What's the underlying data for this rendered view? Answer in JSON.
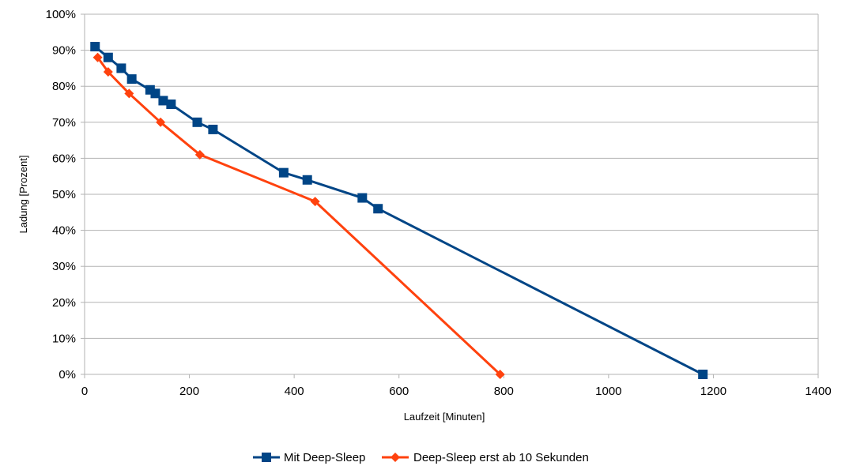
{
  "chart_data": {
    "type": "line",
    "xlabel": "Laufzeit [Minuten]",
    "ylabel": "Ladung [Prozent]",
    "xlim": [
      0,
      1400
    ],
    "ylim": [
      0,
      100
    ],
    "x_ticks": [
      0,
      200,
      400,
      600,
      800,
      1000,
      1200,
      1400
    ],
    "y_ticks": [
      0,
      10,
      20,
      30,
      40,
      50,
      60,
      70,
      80,
      90,
      100
    ],
    "x_tick_labels": [
      "0",
      "200",
      "400",
      "600",
      "800",
      "1000",
      "1200",
      "1400"
    ],
    "y_tick_labels": [
      "0%",
      "10%",
      "20%",
      "30%",
      "40%",
      "50%",
      "60%",
      "70%",
      "80%",
      "90%",
      "100%"
    ],
    "grid": true,
    "legend_position": "bottom",
    "series": [
      {
        "name": "Mit Deep-Sleep",
        "color": "#004586",
        "marker": "square",
        "points": [
          [
            20,
            91
          ],
          [
            45,
            88
          ],
          [
            70,
            85
          ],
          [
            90,
            82
          ],
          [
            125,
            79
          ],
          [
            135,
            78
          ],
          [
            150,
            76
          ],
          [
            165,
            75
          ],
          [
            215,
            70
          ],
          [
            245,
            68
          ],
          [
            380,
            56
          ],
          [
            425,
            54
          ],
          [
            530,
            49
          ],
          [
            560,
            46
          ],
          [
            1180,
            0
          ]
        ]
      },
      {
        "name": "Deep-Sleep erst ab 10 Sekunden",
        "color": "#ff420e",
        "marker": "diamond",
        "points": [
          [
            25,
            88
          ],
          [
            45,
            84
          ],
          [
            85,
            78
          ],
          [
            145,
            70
          ],
          [
            220,
            61
          ],
          [
            440,
            48
          ],
          [
            793,
            0
          ]
        ]
      }
    ]
  }
}
